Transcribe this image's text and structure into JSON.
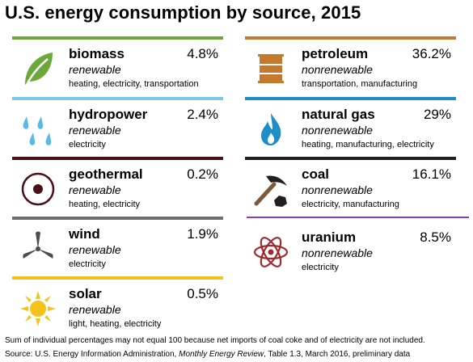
{
  "title": "U.S. energy consumption by source, 2015",
  "sources": {
    "biomass": {
      "name": "biomass",
      "percent": "4.8%",
      "kind": "renewable",
      "uses": "heating, electricity, transportation",
      "color": "#6aa83a",
      "icon": "leaf-icon"
    },
    "hydropower": {
      "name": "hydropower",
      "percent": "2.4%",
      "kind": "renewable",
      "uses": "electricity",
      "color": "#7cc8ec",
      "icon": "water-drops-icon"
    },
    "geothermal": {
      "name": "geothermal",
      "percent": "0.2%",
      "kind": "renewable",
      "uses": "heating, electricity",
      "color": "#4a0f17",
      "icon": "geothermal-icon"
    },
    "wind": {
      "name": "wind",
      "percent": "1.9%",
      "kind": "renewable",
      "uses": "electricity",
      "color": "#6d6e71",
      "icon": "wind-turbine-icon"
    },
    "solar": {
      "name": "solar",
      "percent": "0.5%",
      "kind": "renewable",
      "uses": "light, heating, electricity",
      "color": "#f4c21a",
      "icon": "sun-icon"
    },
    "petroleum": {
      "name": "petroleum",
      "percent": "36.2%",
      "kind": "nonrenewable",
      "uses": "transportation, manufacturing",
      "color": "#c5792f",
      "icon": "oil-barrel-icon"
    },
    "natural_gas": {
      "name": "natural gas",
      "percent": "29%",
      "kind": "nonrenewable",
      "uses": "heating, manufacturing, electricity",
      "color": "#1c8fc9",
      "icon": "gas-flame-icon"
    },
    "coal": {
      "name": "coal",
      "percent": "16.1%",
      "kind": "nonrenewable",
      "uses": "electricity, manufacturing",
      "color": "#231f20",
      "icon": "pickaxe-coal-icon"
    },
    "uranium": {
      "name": "uranium",
      "percent": "8.5%",
      "kind": "nonrenewable",
      "uses": "electricity",
      "color": "#9e2a2f",
      "icon": "atom-icon"
    }
  },
  "footnote": "Sum of individual percentages may not equal 100 because net imports of coal coke and of electricity are not included.",
  "source_prefix": "Source: U.S. Energy Information Administration, ",
  "source_pub": "Monthly Energy Review",
  "source_suffix": ", Table 1.3, March 2016, preliminary data"
}
